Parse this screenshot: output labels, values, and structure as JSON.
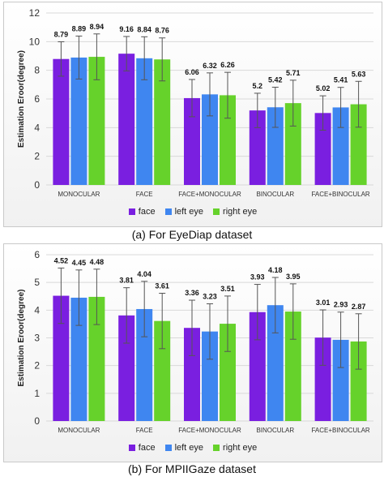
{
  "captions": {
    "a": "(a) For EyeDiap dataset",
    "b": "(b) For MPIIGaze dataset"
  },
  "colors": {
    "face": "#7a1fe0",
    "left eye": "#3f86f0",
    "right eye": "#66d22b",
    "grid": "#d9d9d9",
    "error_bar": "#555555"
  },
  "chart_data": [
    {
      "type": "bar",
      "ylabel": "Estimation Eroor(degree)",
      "ylim": [
        0,
        12
      ],
      "yticks": [
        0,
        2,
        4,
        6,
        8,
        10,
        12
      ],
      "categories": [
        "MONOCULAR",
        "FACE",
        "FACE+MONOCULAR",
        "BINOCULAR",
        "FACE+BINOCULAR"
      ],
      "series": [
        {
          "name": "face",
          "values": [
            8.79,
            9.16,
            6.06,
            5.2,
            5.02
          ],
          "errors": [
            1.2,
            1.2,
            1.3,
            1.2,
            1.2
          ]
        },
        {
          "name": "left eye",
          "values": [
            8.89,
            8.84,
            6.32,
            5.42,
            5.41
          ],
          "errors": [
            1.5,
            1.5,
            1.5,
            1.4,
            1.4
          ]
        },
        {
          "name": "right eye",
          "values": [
            8.94,
            8.76,
            6.26,
            5.71,
            5.63
          ],
          "errors": [
            1.6,
            1.5,
            1.6,
            1.6,
            1.6
          ]
        }
      ],
      "value_labels": [
        [
          "8.79",
          "9.16",
          "6.06",
          "5.2",
          "5.02"
        ],
        [
          "8.89",
          "8.84",
          "6.32",
          "5.42",
          "5.41"
        ],
        [
          "8.94",
          "8.76",
          "6.26",
          "5.71",
          "5.63"
        ]
      ],
      "grid": true,
      "legend": "bottom-center"
    },
    {
      "type": "bar",
      "ylabel": "Estimation Eroor(degree)",
      "ylim": [
        0,
        6
      ],
      "yticks": [
        0,
        1,
        2,
        3,
        4,
        5,
        6
      ],
      "categories": [
        "MONOCULAR",
        "FACE",
        "FACE+MONOCULAR",
        "BINOCULAR",
        "FACE+BINOCULAR"
      ],
      "series": [
        {
          "name": "face",
          "values": [
            4.52,
            3.81,
            3.36,
            3.93,
            3.01
          ],
          "errors": [
            1.0,
            1.0,
            1.0,
            1.0,
            1.0
          ]
        },
        {
          "name": "left eye",
          "values": [
            4.45,
            4.04,
            3.23,
            4.18,
            2.93
          ],
          "errors": [
            1.0,
            1.0,
            1.0,
            1.0,
            1.0
          ]
        },
        {
          "name": "right eye",
          "values": [
            4.48,
            3.61,
            3.51,
            3.95,
            2.87
          ],
          "errors": [
            1.0,
            1.0,
            1.0,
            1.0,
            1.0
          ]
        }
      ],
      "value_labels": [
        [
          "4.52",
          "3.81",
          "3.36",
          "3.93",
          "3.01"
        ],
        [
          "4.45",
          "4.04",
          "3.23",
          "4.18",
          "2.93"
        ],
        [
          "4.48",
          "3.61",
          "3.51",
          "3.95",
          "2.87"
        ]
      ],
      "grid": true,
      "legend": "bottom-center"
    }
  ]
}
